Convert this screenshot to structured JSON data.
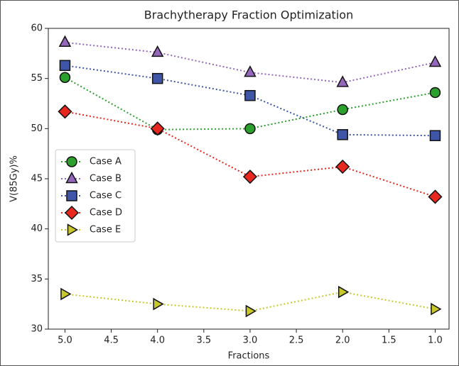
{
  "chart_data": {
    "type": "line",
    "title": "Brachytherapy Fraction Optimization",
    "xlabel": "Fractions",
    "ylabel": "V(85Gy)%",
    "x": [
      5,
      4,
      3,
      2,
      1
    ],
    "xlim": [
      5.18,
      0.85
    ],
    "xticks": [
      {
        "value": 5,
        "label": "5.0"
      },
      {
        "value": 4.5,
        "label": "4.5"
      },
      {
        "value": 4,
        "label": "4.0"
      },
      {
        "value": 3.5,
        "label": "3.5"
      },
      {
        "value": 3,
        "label": "3.0"
      },
      {
        "value": 2.5,
        "label": "2.5"
      },
      {
        "value": 2,
        "label": "2.0"
      },
      {
        "value": 1.5,
        "label": "1.5"
      },
      {
        "value": 1,
        "label": "1.0"
      }
    ],
    "ylim": [
      30,
      60
    ],
    "yticks": [
      30,
      35,
      40,
      45,
      50,
      55,
      60
    ],
    "legend": "center left",
    "linestyle": "dotted",
    "series": [
      {
        "name": "Case A",
        "color": "#2ca02c",
        "marker": "circle",
        "values": [
          55.1,
          49.9,
          50.0,
          51.9,
          53.6
        ]
      },
      {
        "name": "Case B",
        "color": "#9467bd",
        "marker": "triangle-up",
        "values": [
          58.6,
          57.6,
          55.6,
          54.6,
          56.6
        ]
      },
      {
        "name": "Case C",
        "color": "#3f56a8",
        "marker": "square",
        "values": [
          56.3,
          55.0,
          53.3,
          49.4,
          49.3
        ]
      },
      {
        "name": "Case D",
        "color": "#e8271f",
        "marker": "diamond",
        "values": [
          51.7,
          50.0,
          45.2,
          46.2,
          43.2
        ]
      },
      {
        "name": "Case E",
        "color": "#c8c82a",
        "marker": "triangle-right",
        "values": [
          33.5,
          32.5,
          31.8,
          33.7,
          32.0
        ]
      }
    ]
  }
}
